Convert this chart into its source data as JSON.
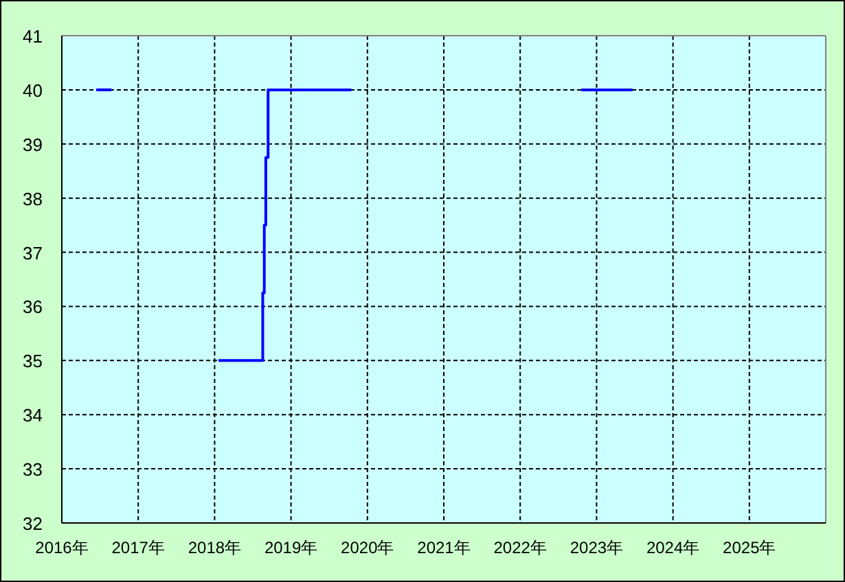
{
  "chart_data": {
    "type": "line",
    "series": [
      {
        "color": "#0000ff",
        "x": [
          2016.45,
          2016.65
        ],
        "values": [
          40,
          40
        ]
      },
      {
        "color": "#0000ff",
        "x": [
          2018.05,
          2018.63,
          2018.63,
          2018.65,
          2018.65,
          2018.67,
          2018.67,
          2018.7,
          2018.7,
          2019.79
        ],
        "values": [
          35,
          35,
          36.25,
          36.25,
          37.5,
          37.5,
          38.75,
          38.75,
          40,
          40
        ]
      },
      {
        "color": "#0000ff",
        "x": [
          2022.8,
          2023.47
        ],
        "values": [
          40,
          40
        ]
      }
    ],
    "xlim": [
      2016,
      2026
    ],
    "xticks": [
      {
        "value": 2016,
        "label": "2016年"
      },
      {
        "value": 2017,
        "label": "2017年"
      },
      {
        "value": 2018,
        "label": "2018年"
      },
      {
        "value": 2019,
        "label": "2019年"
      },
      {
        "value": 2020,
        "label": "2020年"
      },
      {
        "value": 2021,
        "label": "2021年"
      },
      {
        "value": 2022,
        "label": "2022年"
      },
      {
        "value": 2023,
        "label": "2023年"
      },
      {
        "value": 2024,
        "label": "2024年"
      },
      {
        "value": 2025,
        "label": "2025年"
      }
    ],
    "ylim": [
      32,
      41
    ],
    "yticks": [
      32,
      33,
      34,
      35,
      36,
      37,
      38,
      39,
      40,
      41
    ],
    "grid": true
  }
}
